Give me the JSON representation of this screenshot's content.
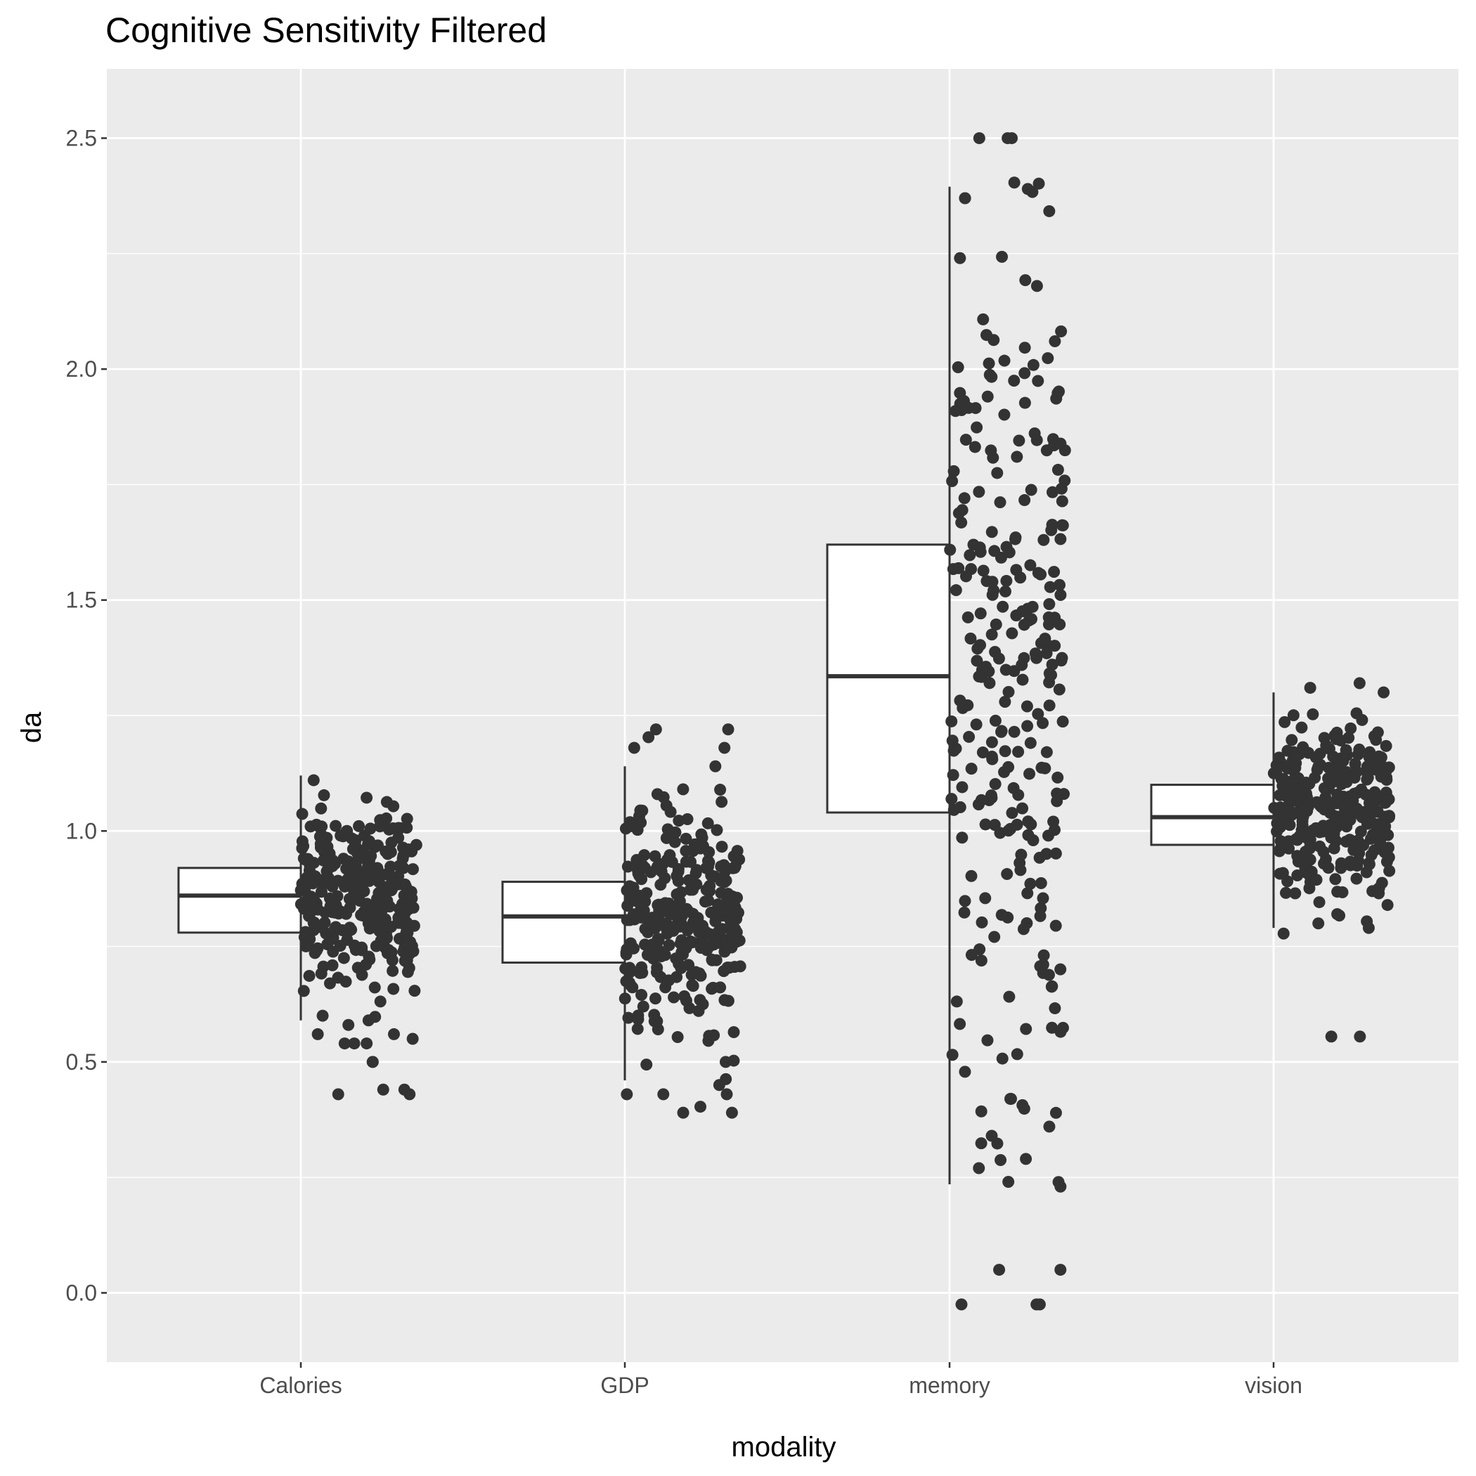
{
  "chart_data": {
    "type": "boxplot",
    "title": "Cognitive Sensitivity Filtered",
    "xlabel": "modality",
    "ylabel": "da",
    "categories": [
      "Calories",
      "GDP",
      "memory",
      "vision"
    ],
    "ylim": [
      -0.15,
      2.65
    ],
    "yticks": [
      0.0,
      0.5,
      1.0,
      1.5,
      2.0,
      2.5
    ],
    "ytick_labels": [
      "0.0",
      "0.5",
      "1.0",
      "1.5",
      "2.0",
      "2.5"
    ],
    "grid": true,
    "legend": "none",
    "colors": {
      "panel": "#ebebeb",
      "grid": "#ffffff",
      "box_fill": "#ffffff",
      "box_line": "#333333",
      "points": "#333333"
    },
    "boxes": [
      {
        "category": "Calories",
        "whisker_low": 0.59,
        "q1": 0.78,
        "median": 0.86,
        "q3": 0.92,
        "whisker_high": 1.12
      },
      {
        "category": "GDP",
        "whisker_low": 0.46,
        "q1": 0.715,
        "median": 0.815,
        "q3": 0.89,
        "whisker_high": 1.14
      },
      {
        "category": "memory",
        "whisker_low": 0.235,
        "q1": 1.04,
        "median": 1.335,
        "q3": 1.62,
        "whisker_high": 2.395
      },
      {
        "category": "vision",
        "whisker_low": 0.79,
        "q1": 0.97,
        "median": 1.03,
        "q3": 1.1,
        "whisker_high": 1.3
      }
    ],
    "jittered_points": [
      {
        "category": "Calories",
        "n_approx": 320,
        "range": [
          0.42,
          1.12
        ],
        "center": 0.86,
        "spread": 0.1,
        "outliers": [
          0.56,
          0.54,
          0.5,
          0.44,
          0.43,
          0.44,
          0.43,
          0.54,
          0.54,
          0.5,
          0.59,
          0.55,
          0.56,
          0.58,
          0.6
        ]
      },
      {
        "category": "GDP",
        "n_approx": 320,
        "range": [
          0.39,
          1.22
        ],
        "center": 0.81,
        "spread": 0.12,
        "outliers": [
          1.22,
          1.18,
          1.22,
          0.43,
          0.39,
          0.45,
          0.43,
          0.39,
          0.43,
          0.5,
          1.18,
          1.14
        ]
      },
      {
        "category": "memory",
        "n_approx": 300,
        "range": [
          -0.025,
          2.5
        ],
        "center": 1.33,
        "spread": 0.45,
        "outliers": [
          2.5,
          2.5,
          2.37,
          2.39,
          2.37,
          0.05,
          0.05,
          -0.025,
          -0.025,
          0.23,
          0.24,
          0.29,
          0.34,
          0.36,
          0.42,
          0.42,
          0.27
        ]
      },
      {
        "category": "vision",
        "n_approx": 320,
        "range": [
          0.55,
          1.32
        ],
        "center": 1.04,
        "spread": 0.09,
        "outliers": [
          0.555,
          0.555,
          0.79,
          0.8,
          0.82,
          1.31,
          1.32,
          1.3
        ]
      }
    ]
  }
}
